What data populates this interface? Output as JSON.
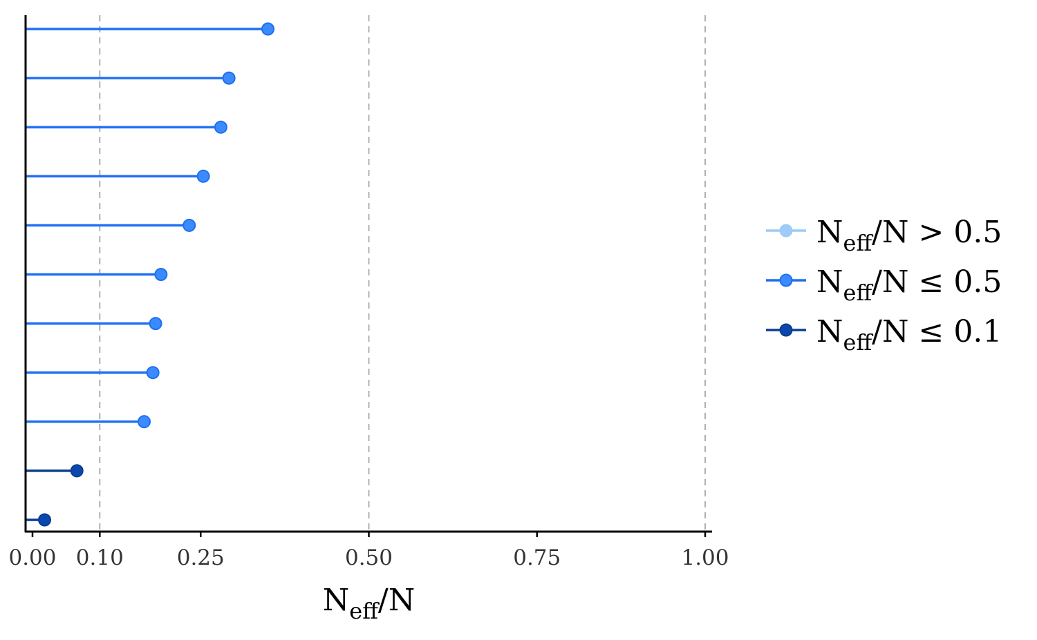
{
  "chart_data": {
    "type": "lollipop",
    "xlabel": {
      "main": "N",
      "sub": "eff",
      "rest": "/N"
    },
    "xlim": [
      -0.01,
      1.0
    ],
    "xticks": [
      0.0,
      0.1,
      0.25,
      0.5,
      0.75,
      1.0
    ],
    "xtick_labels": [
      "0.00",
      "0.10",
      "0.25",
      "0.50",
      "0.75",
      "1.00"
    ],
    "reference_lines": [
      0.1,
      0.5,
      1.0
    ],
    "grid": false,
    "legend_position": "right",
    "colors": {
      "gt_0_5": "#9ecbf7",
      "le_0_5": "#1e6ff2",
      "le_0_1": "#0b3d91",
      "le_0_5_point": "#3b8bff",
      "le_0_1_point": "#0b48ad",
      "axis": "#000000",
      "refline": "#b0b0b0"
    },
    "legend": [
      {
        "group": "gt_0_5",
        "main": "N",
        "sub": "eff",
        "rest": "/N > 0.5"
      },
      {
        "group": "le_0_5",
        "main": "N",
        "sub": "eff",
        "rest": "/N ≤ 0.5"
      },
      {
        "group": "le_0_1",
        "main": "N",
        "sub": "eff",
        "rest": "/N ≤ 0.1"
      }
    ],
    "points": [
      {
        "value": 0.35,
        "group": "le_0_5"
      },
      {
        "value": 0.292,
        "group": "le_0_5"
      },
      {
        "value": 0.28,
        "group": "le_0_5"
      },
      {
        "value": 0.254,
        "group": "le_0_5"
      },
      {
        "value": 0.233,
        "group": "le_0_5"
      },
      {
        "value": 0.191,
        "group": "le_0_5"
      },
      {
        "value": 0.183,
        "group": "le_0_5"
      },
      {
        "value": 0.179,
        "group": "le_0_5"
      },
      {
        "value": 0.166,
        "group": "le_0_5"
      },
      {
        "value": 0.066,
        "group": "le_0_1"
      },
      {
        "value": 0.018,
        "group": "le_0_1"
      }
    ]
  }
}
